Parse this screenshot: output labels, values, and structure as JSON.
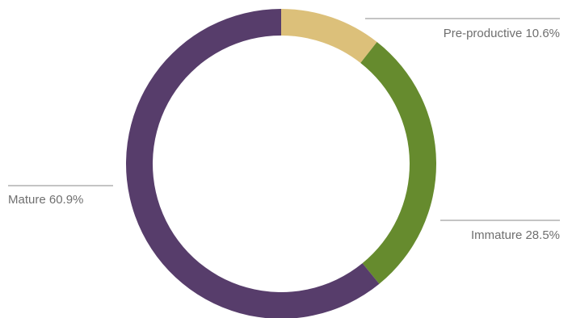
{
  "chart_data": {
    "type": "pie",
    "variant": "donut",
    "title": "",
    "slices": [
      {
        "name": "Pre-productive",
        "value": 10.6,
        "label": "Pre-productive 10.6%",
        "color": "#dcc07a"
      },
      {
        "name": "Immature",
        "value": 28.5,
        "label": "Immature 28.5%",
        "color": "#668b2e"
      },
      {
        "name": "Mature",
        "value": 60.9,
        "label": "Mature 60.9%",
        "color": "#573d6b"
      }
    ],
    "legend": "none",
    "start_angle": "top (12 o'clock), clockwise"
  }
}
